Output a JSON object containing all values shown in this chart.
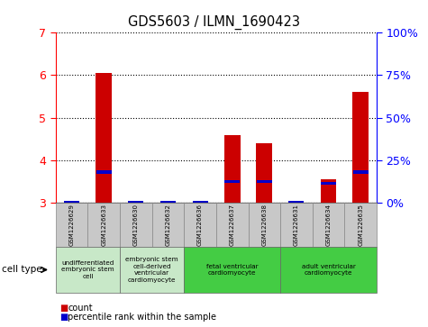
{
  "title": "GDS5603 / ILMN_1690423",
  "samples": [
    "GSM1226629",
    "GSM1226633",
    "GSM1226630",
    "GSM1226632",
    "GSM1226636",
    "GSM1226637",
    "GSM1226638",
    "GSM1226631",
    "GSM1226634",
    "GSM1226635"
  ],
  "counts": [
    3.0,
    6.05,
    3.0,
    3.0,
    3.0,
    4.6,
    4.4,
    3.0,
    3.55,
    5.6
  ],
  "percentile_ranks": [
    3.0,
    3.72,
    3.0,
    3.0,
    3.0,
    3.5,
    3.5,
    3.0,
    3.45,
    3.72
  ],
  "ylim": [
    3,
    7
  ],
  "yticks": [
    3,
    4,
    5,
    6,
    7
  ],
  "right_yticks": [
    0,
    25,
    50,
    75,
    100
  ],
  "bar_color": "#cc0000",
  "percentile_color": "#0000cc",
  "sample_box_color": "#c8c8c8",
  "cell_type_groups": [
    {
      "indices": [
        0,
        1
      ],
      "label": "undifferentiated\nembryonic stem\ncell",
      "color": "#c8e8c8"
    },
    {
      "indices": [
        2,
        3
      ],
      "label": "embryonic stem\ncell-derived\nventricular\ncardiomyocyte",
      "color": "#c8e8c8"
    },
    {
      "indices": [
        4,
        5,
        6
      ],
      "label": "fetal ventricular\ncardiomyocyte",
      "color": "#44cc44"
    },
    {
      "indices": [
        7,
        8,
        9
      ],
      "label": "adult ventricular\ncardiomyocyte",
      "color": "#44cc44"
    }
  ],
  "legend_count_label": "count",
  "legend_percentile_label": "percentile rank within the sample",
  "cell_type_label": "cell type"
}
